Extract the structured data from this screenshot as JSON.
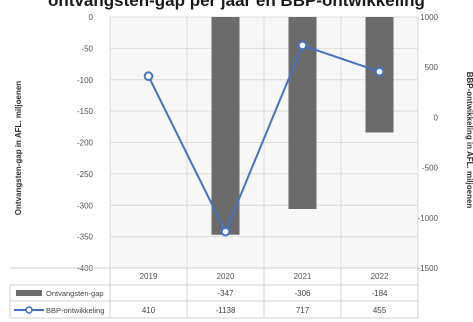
{
  "chart_data": {
    "type": "bar+line",
    "title_partial": "ontvangsten-gap per jaar en BBP-ontwikkeling",
    "categories": [
      "2019",
      "2020",
      "2021",
      "2022"
    ],
    "series": [
      {
        "name": "Ontvangsten-gap",
        "type": "bar",
        "axis": "left",
        "values": [
          null,
          -347,
          -306,
          -184
        ],
        "value_labels": [
          "",
          "-347",
          "-306",
          "-184"
        ],
        "color": "#6b6b6b"
      },
      {
        "name": "BBP-ontwikkeling",
        "type": "line",
        "axis": "right",
        "values": [
          410,
          -1138,
          717,
          455
        ],
        "value_labels": [
          "410",
          "-1138",
          "717",
          "455"
        ],
        "color": "#4472c4"
      }
    ],
    "ylabel_left": "Ontvangsten-gap in AFL. miljoenen",
    "ylabel_right": "BBP-ontwikkeling in AFL. miljoenen",
    "ylim_left": [
      -400,
      0
    ],
    "ylim_right": [
      -1500,
      1000
    ],
    "yticks_left": [
      "0",
      "-50",
      "-100",
      "-150",
      "-200",
      "-250",
      "-300",
      "-350",
      "-400"
    ],
    "yticks_right": [
      "1000",
      "500",
      "0",
      "-500",
      "-1000",
      "-1500"
    ],
    "legend": "data-table",
    "grid": true
  }
}
